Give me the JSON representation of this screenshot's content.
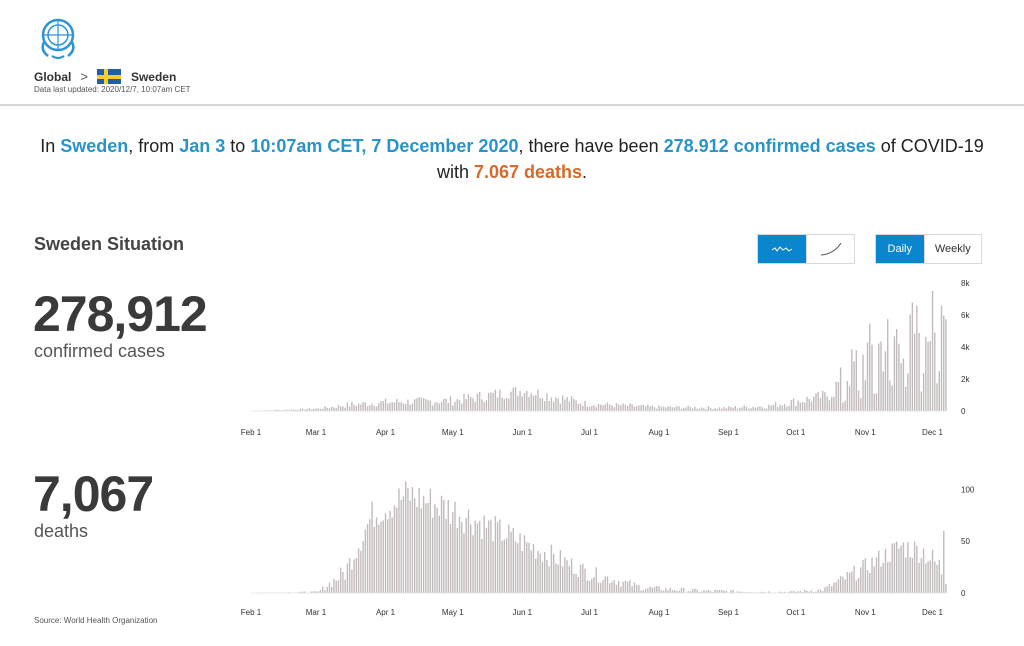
{
  "header": {
    "breadcrumb_global": "Global",
    "breadcrumb_country": "Sweden",
    "last_updated": "Data last updated: 2020/12/7, 10:07am CET"
  },
  "summary": {
    "p1": "In ",
    "country": "Sweden",
    "p2": ", from ",
    "from": "Jan 3",
    "p3": " to ",
    "to": "10:07am CET, 7 December 2020",
    "p4": ", there have been ",
    "cases": "278.912 confirmed cases",
    "p5": " of COVID-19 with ",
    "deaths": "7.067 deaths",
    "p6": "."
  },
  "situation": {
    "title": "Sweden Situation",
    "cases_value": "278,912",
    "cases_label": "confirmed cases",
    "deaths_value": "7,067",
    "deaths_label": "deaths"
  },
  "controls": {
    "daily": "Daily",
    "weekly": "Weekly",
    "linear_icon": "wave-line-icon",
    "cumulative_icon": "curve-icon"
  },
  "source": "Source: World Health Organization",
  "colors": {
    "accent": "#2894c8",
    "deaths": "#d56b2b",
    "bar": "#c2bbbb",
    "active_button": "#0a86cf"
  },
  "chart_data": [
    {
      "type": "bar",
      "x_start": "Feb 1",
      "month_ticks": [
        "Feb 1",
        "Mar 1",
        "Apr 1",
        "May 1",
        "Jun 1",
        "Jul 1",
        "Aug 1",
        "Sep 1",
        "Oct 1",
        "Nov 1",
        "Dec 1"
      ],
      "y_ticks": [
        "0",
        "2k",
        "4k",
        "6k",
        "8k"
      ],
      "ylim": [
        0,
        8000
      ],
      "series": [
        {
          "segments": [
            {
              "day": 0,
              "base": 0,
              "noise": 0
            },
            {
              "day": 30,
              "base": 150,
              "noise": 60
            },
            {
              "day": 45,
              "base": 400,
              "noise": 200
            },
            {
              "day": 60,
              "base": 550,
              "noise": 250
            },
            {
              "day": 90,
              "base": 650,
              "noise": 300
            },
            {
              "day": 105,
              "base": 950,
              "noise": 400
            },
            {
              "day": 122,
              "base": 1300,
              "noise": 400
            },
            {
              "day": 135,
              "base": 900,
              "noise": 400
            },
            {
              "day": 150,
              "base": 450,
              "noise": 200
            },
            {
              "day": 180,
              "base": 250,
              "noise": 120
            },
            {
              "day": 210,
              "base": 200,
              "noise": 100
            },
            {
              "day": 230,
              "base": 300,
              "noise": 150
            },
            {
              "day": 243,
              "base": 600,
              "noise": 300
            },
            {
              "day": 258,
              "base": 1000,
              "noise": 400
            },
            {
              "day": 267,
              "base": 2500,
              "noise": 1400
            },
            {
              "day": 278,
              "base": 3800,
              "noise": 2200
            },
            {
              "day": 290,
              "base": 4800,
              "noise": 2200
            },
            {
              "day": 300,
              "base": 5200,
              "noise": 2000
            },
            {
              "day": 309,
              "base": 5600,
              "noise": 1600
            }
          ],
          "peak_day": 304,
          "peak": 7500
        }
      ]
    },
    {
      "type": "bar",
      "x_start": "Feb 1",
      "month_ticks": [
        "Feb 1",
        "Mar 1",
        "Apr 1",
        "May 1",
        "Jun 1",
        "Jul 1",
        "Aug 1",
        "Sep 1",
        "Oct 1",
        "Nov 1",
        "Dec 1"
      ],
      "y_ticks": [
        "0",
        "50",
        "100"
      ],
      "ylim": [
        0,
        110
      ],
      "series": [
        {
          "segments": [
            {
              "day": 0,
              "base": 0,
              "noise": 0
            },
            {
              "day": 30,
              "base": 1,
              "noise": 1
            },
            {
              "day": 42,
              "base": 20,
              "noise": 10
            },
            {
              "day": 54,
              "base": 75,
              "noise": 15
            },
            {
              "day": 70,
              "base": 95,
              "noise": 18
            },
            {
              "day": 90,
              "base": 80,
              "noise": 18
            },
            {
              "day": 110,
              "base": 60,
              "noise": 14
            },
            {
              "day": 130,
              "base": 40,
              "noise": 12
            },
            {
              "day": 150,
              "base": 20,
              "noise": 8
            },
            {
              "day": 175,
              "base": 5,
              "noise": 3
            },
            {
              "day": 200,
              "base": 2,
              "noise": 2
            },
            {
              "day": 240,
              "base": 1,
              "noise": 1
            },
            {
              "day": 255,
              "base": 3,
              "noise": 2
            },
            {
              "day": 270,
              "base": 20,
              "noise": 8
            },
            {
              "day": 290,
              "base": 45,
              "noise": 12
            },
            {
              "day": 300,
              "base": 40,
              "noise": 12
            },
            {
              "day": 309,
              "base": 20,
              "noise": 15
            }
          ],
          "peak_day": 309,
          "peak": 60
        }
      ]
    }
  ]
}
